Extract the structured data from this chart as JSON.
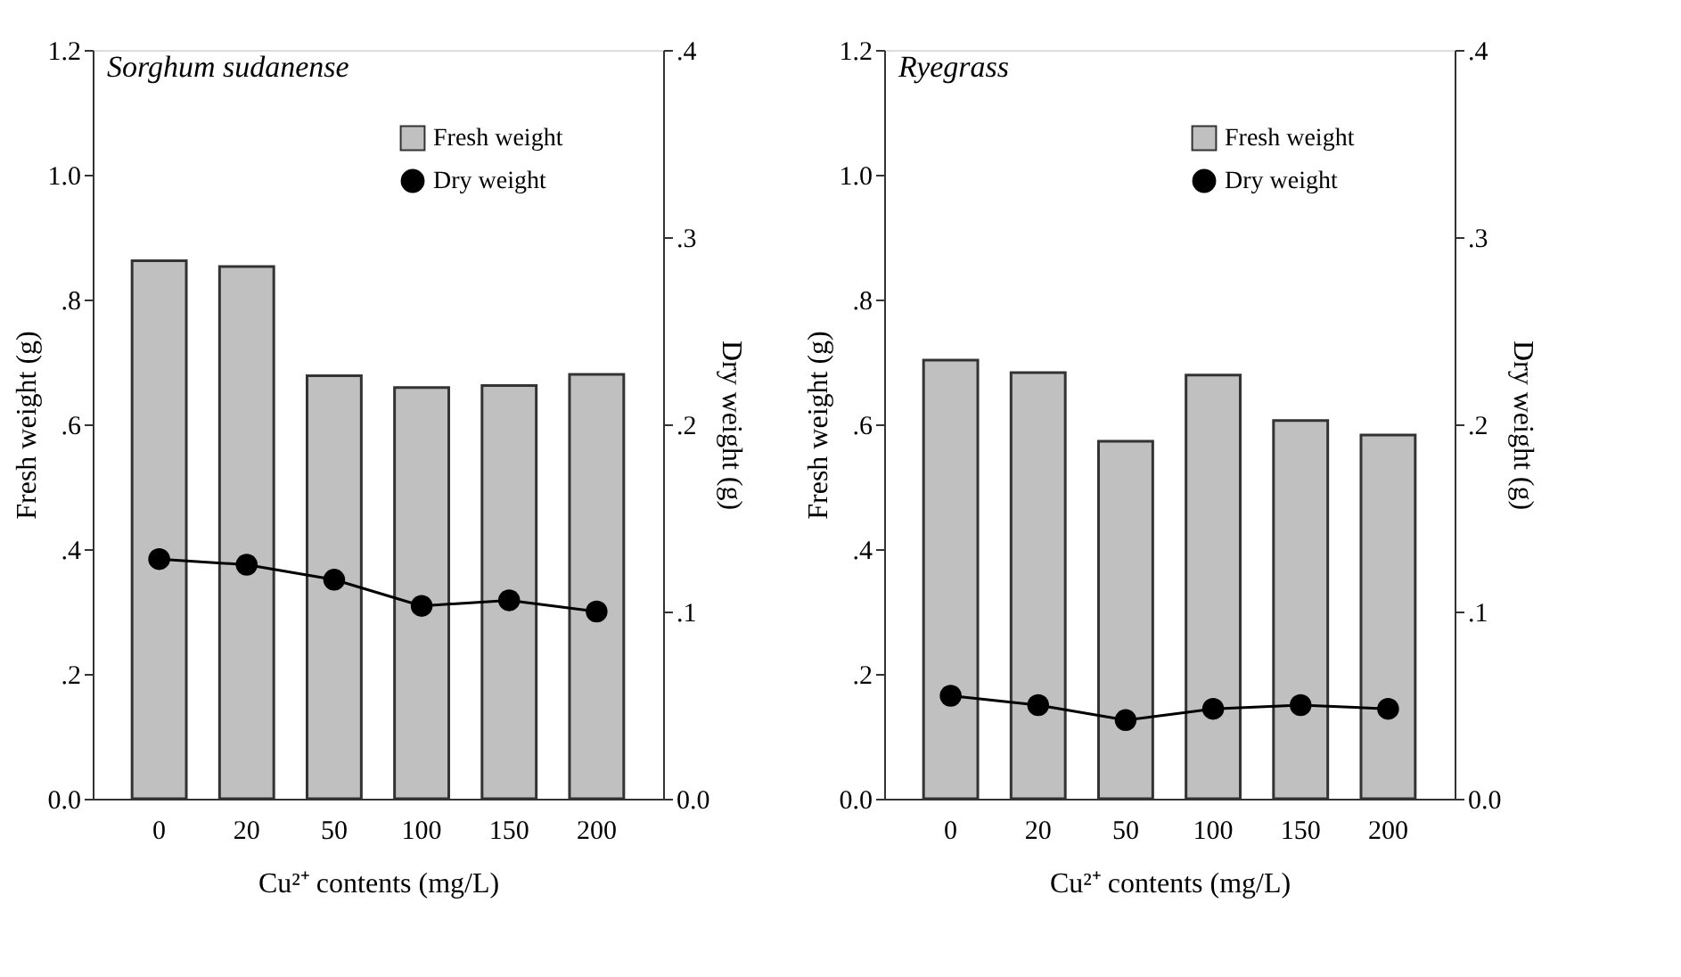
{
  "chart_data": [
    {
      "type": "bar",
      "title": "Sorghum sudanense",
      "xlabel": "Cu²⁺ contents (mg/L)",
      "ylabel": "Fresh weight (g)",
      "y2label": "Dry weight (g)",
      "categories": [
        "0",
        "20",
        "50",
        "100",
        "150",
        "200"
      ],
      "series": [
        {
          "name": "Fresh weight",
          "color": "#c0c0c0",
          "values": [
            0.862,
            0.853,
            0.678,
            0.659,
            0.662,
            0.68
          ]
        },
        {
          "name": "Dry weight",
          "type": "line",
          "axis": "y2",
          "color": "#000000",
          "marker": "circle",
          "values": [
            0.128,
            0.125,
            0.117,
            0.103,
            0.106,
            0.1
          ]
        }
      ],
      "ylim": [
        0,
        1.2
      ],
      "yticks": [
        {
          "value": 0,
          "label": "0.0"
        },
        {
          "value": 0.2,
          "label": ".2"
        },
        {
          "value": 0.4,
          "label": ".4"
        },
        {
          "value": 0.6,
          "label": ".6"
        },
        {
          "value": 0.8,
          "label": ".8"
        },
        {
          "value": 1.0,
          "label": "1.0"
        },
        {
          "value": 1.2,
          "label": "1.2"
        }
      ],
      "y2lim": [
        0,
        0.4
      ],
      "y2ticks": [
        {
          "value": 0,
          "label": "0.0"
        },
        {
          "value": 0.1,
          "label": ".1"
        },
        {
          "value": 0.2,
          "label": ".2"
        },
        {
          "value": 0.3,
          "label": ".3"
        },
        {
          "value": 0.4,
          "label": ".4"
        }
      ],
      "legend": "top right",
      "grid": false
    },
    {
      "type": "bar",
      "title": "Ryegrass",
      "xlabel": "Cu²⁺ contents (mg/L)",
      "ylabel": "Fresh weight (g)",
      "y2label": "Dry weight (g)",
      "categories": [
        "0",
        "20",
        "50",
        "100",
        "150",
        "200"
      ],
      "series": [
        {
          "name": "Fresh weight",
          "color": "#c0c0c0",
          "values": [
            0.703,
            0.683,
            0.573,
            0.679,
            0.606,
            0.583
          ]
        },
        {
          "name": "Dry weight",
          "type": "line",
          "axis": "y2",
          "color": "#000000",
          "marker": "circle",
          "values": [
            0.055,
            0.05,
            0.042,
            0.048,
            0.05,
            0.048
          ]
        }
      ],
      "ylim": [
        0,
        1.2
      ],
      "yticks": [
        {
          "value": 0,
          "label": "0.0"
        },
        {
          "value": 0.2,
          "label": ".2"
        },
        {
          "value": 0.4,
          "label": ".4"
        },
        {
          "value": 0.6,
          "label": ".6"
        },
        {
          "value": 0.8,
          "label": ".8"
        },
        {
          "value": 1.0,
          "label": "1.0"
        },
        {
          "value": 1.2,
          "label": "1.2"
        }
      ],
      "y2lim": [
        0,
        0.4
      ],
      "y2ticks": [
        {
          "value": 0,
          "label": "0.0"
        },
        {
          "value": 0.1,
          "label": ".1"
        },
        {
          "value": 0.2,
          "label": ".2"
        },
        {
          "value": 0.3,
          "label": ".3"
        },
        {
          "value": 0.4,
          "label": ".4"
        }
      ],
      "legend": "top right",
      "grid": false
    }
  ]
}
